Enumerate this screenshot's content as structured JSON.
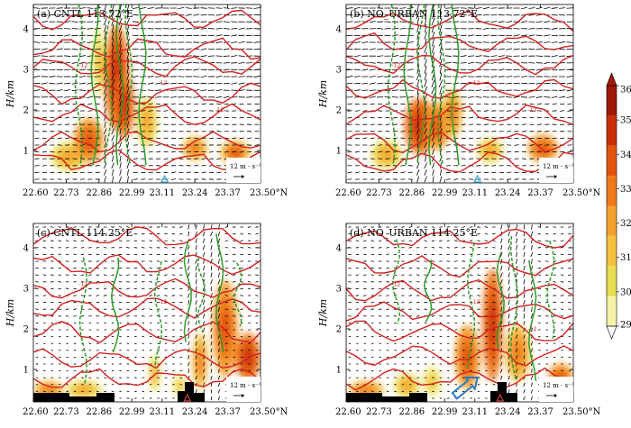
{
  "chart_data": {
    "type": "heatmap",
    "x_ticks": [
      22.6,
      22.73,
      22.86,
      22.99,
      23.11,
      23.24,
      23.37,
      23.5
    ],
    "x_tick_labels": [
      "22.60",
      "22.73",
      "22.86",
      "22.99",
      "23.11",
      "23.24",
      "23.37",
      "23.50°N"
    ],
    "y_ticks": [
      1,
      2,
      3,
      4
    ],
    "y_tick_labels": [
      "1",
      "2",
      "3",
      "4"
    ],
    "xlim": [
      22.6,
      23.5
    ],
    "ylim": [
      0.2,
      4.6
    ],
    "ylabel": "H/km",
    "colorbar": {
      "ticks": [
        29,
        30,
        31,
        32,
        33,
        34,
        35,
        36
      ],
      "tick_labels": [
        "29",
        "30",
        "31",
        "32",
        "33",
        "34",
        "35",
        "36"
      ],
      "colors": [
        "#f5f2a8",
        "#e8dc50",
        "#f4c040",
        "#f4a030",
        "#ee7a1c",
        "#e25510",
        "#c83008",
        "#a01804"
      ]
    },
    "vector_reference": {
      "label": "12 m · s⁻¹"
    },
    "contour_label": "-12",
    "panels": [
      {
        "label": "(a)  CNTL  113.72°E",
        "marker": {
          "x": 23.12,
          "color": "#35a8d8"
        },
        "blobs": [
          {
            "x": 22.74,
            "h": 0.85,
            "w": 0.07,
            "dh": 0.35,
            "v": 32
          },
          {
            "x": 22.82,
            "h": 1.25,
            "w": 0.06,
            "dh": 0.55,
            "v": 34
          },
          {
            "x": 22.86,
            "h": 3.2,
            "w": 0.03,
            "dh": 0.9,
            "v": 31
          },
          {
            "x": 22.93,
            "h": 2.8,
            "w": 0.05,
            "dh": 1.3,
            "v": 34.5
          },
          {
            "x": 22.96,
            "h": 2.1,
            "w": 0.04,
            "dh": 0.8,
            "v": 35
          },
          {
            "x": 23.05,
            "h": 1.7,
            "w": 0.04,
            "dh": 0.6,
            "v": 32
          },
          {
            "x": 23.24,
            "h": 1.05,
            "w": 0.05,
            "dh": 0.3,
            "v": 33
          },
          {
            "x": 23.4,
            "h": 0.95,
            "w": 0.06,
            "dh": 0.3,
            "v": 33.5
          }
        ]
      },
      {
        "label": "(b)  NO_URBAN  113.72°E",
        "marker": {
          "x": 23.12,
          "color": "#35a8d8"
        },
        "blobs": [
          {
            "x": 22.76,
            "h": 0.9,
            "w": 0.06,
            "dh": 0.35,
            "v": 32
          },
          {
            "x": 22.89,
            "h": 1.6,
            "w": 0.06,
            "dh": 0.7,
            "v": 34.5
          },
          {
            "x": 22.96,
            "h": 1.6,
            "w": 0.05,
            "dh": 0.6,
            "v": 34
          },
          {
            "x": 23.02,
            "h": 1.9,
            "w": 0.04,
            "dh": 0.6,
            "v": 33
          },
          {
            "x": 23.17,
            "h": 1.0,
            "w": 0.05,
            "dh": 0.3,
            "v": 32
          },
          {
            "x": 23.38,
            "h": 1.05,
            "w": 0.06,
            "dh": 0.35,
            "v": 34
          }
        ]
      },
      {
        "label": "(c)  CNTL  114.25°E",
        "marker": {
          "x": 23.21,
          "color": "#d84040"
        },
        "blobs": [
          {
            "x": 22.66,
            "h": 0.5,
            "w": 0.06,
            "dh": 0.22,
            "v": 33
          },
          {
            "x": 22.8,
            "h": 0.5,
            "w": 0.07,
            "dh": 0.22,
            "v": 32
          },
          {
            "x": 23.08,
            "h": 0.9,
            "w": 0.02,
            "dh": 0.45,
            "v": 32
          },
          {
            "x": 23.18,
            "h": 0.6,
            "w": 0.03,
            "dh": 0.3,
            "v": 31
          },
          {
            "x": 23.26,
            "h": 1.2,
            "w": 0.03,
            "dh": 0.7,
            "v": 33
          },
          {
            "x": 23.36,
            "h": 2.0,
            "w": 0.05,
            "dh": 1.2,
            "v": 34
          },
          {
            "x": 23.45,
            "h": 1.3,
            "w": 0.05,
            "dh": 0.6,
            "v": 35
          }
        ]
      },
      {
        "label": "(d)  NO_URBAN  114.25°E",
        "marker": {
          "x": 23.21,
          "color": "#d84040"
        },
        "blobs": [
          {
            "x": 22.68,
            "h": 0.5,
            "w": 0.07,
            "dh": 0.22,
            "v": 33
          },
          {
            "x": 22.84,
            "h": 0.6,
            "w": 0.05,
            "dh": 0.3,
            "v": 32
          },
          {
            "x": 22.94,
            "h": 0.7,
            "w": 0.04,
            "dh": 0.4,
            "v": 31
          },
          {
            "x": 23.08,
            "h": 1.3,
            "w": 0.05,
            "dh": 0.8,
            "v": 34
          },
          {
            "x": 23.18,
            "h": 2.1,
            "w": 0.04,
            "dh": 1.4,
            "v": 35
          },
          {
            "x": 23.28,
            "h": 1.4,
            "w": 0.05,
            "dh": 0.7,
            "v": 33
          },
          {
            "x": 23.45,
            "h": 0.8,
            "w": 0.05,
            "dh": 0.35,
            "v": 34
          }
        ]
      }
    ]
  }
}
